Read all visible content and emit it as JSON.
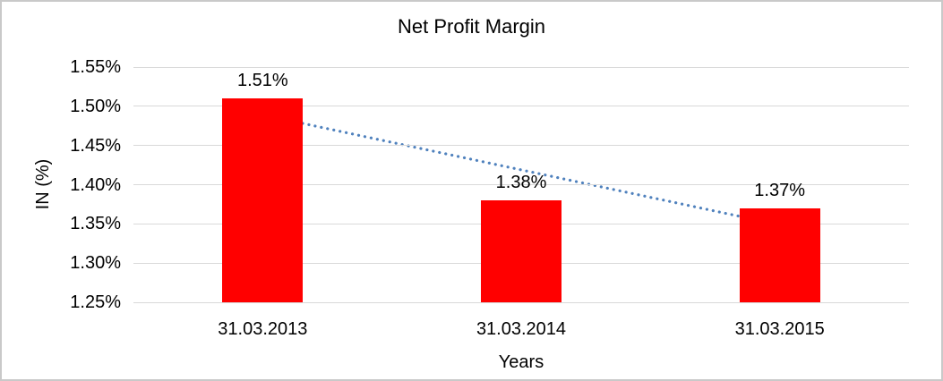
{
  "window": {
    "background_color": "#ffffff",
    "frame_border_color": "#c9c9c9"
  },
  "chart_data": {
    "type": "bar",
    "title": "Net Profit Margin",
    "categories": [
      "31.03.2013",
      "31.03.2014",
      "31.03.2015"
    ],
    "values": [
      1.51,
      1.38,
      1.37
    ],
    "data_labels": [
      "1.51%",
      "1.38%",
      "1.37%"
    ],
    "xlabel": "Years",
    "ylabel": "IN (%)",
    "ylim": [
      1.25,
      1.55
    ],
    "yticks": [
      1.25,
      1.3,
      1.35,
      1.4,
      1.45,
      1.5,
      1.55
    ],
    "ytick_labels": [
      "1.25%",
      "1.30%",
      "1.35%",
      "1.40%",
      "1.45%",
      "1.50%",
      "1.55%"
    ],
    "grid": true,
    "legend": "none",
    "bar_color": "#ff0000",
    "gridline_color": "#d9d9d9",
    "text_color": "#000000",
    "trendline": {
      "style": "dotted",
      "color": "#4f81bd",
      "start": {
        "category_index": 0,
        "value": 1.49
      },
      "end": {
        "category_index": 2,
        "value": 1.35
      }
    }
  }
}
